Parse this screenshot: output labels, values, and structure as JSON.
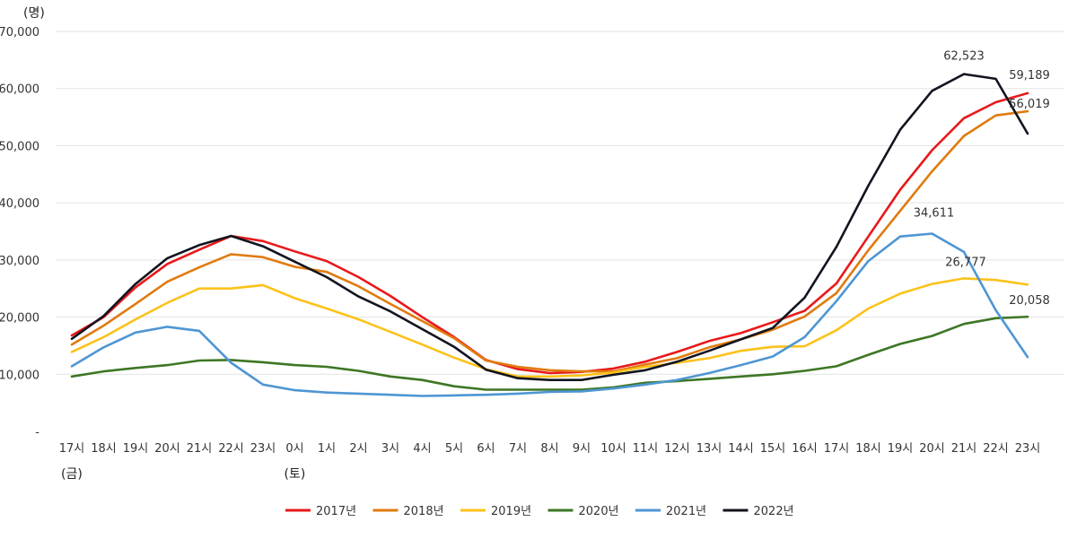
{
  "chart_data": {
    "type": "line",
    "title": "",
    "y_unit_label": "(명)",
    "xlabel": "",
    "ylabel": "",
    "ylim": [
      0,
      70000
    ],
    "y_ticks": [
      {
        "value": 0,
        "label": "-"
      },
      {
        "value": 10000,
        "label": "10,000"
      },
      {
        "value": 20000,
        "label": "20,000"
      },
      {
        "value": 30000,
        "label": "30,000"
      },
      {
        "value": 40000,
        "label": "40,000"
      },
      {
        "value": 50000,
        "label": "50,000"
      },
      {
        "value": 60000,
        "label": "60,000"
      },
      {
        "value": 70000,
        "label": "70,000"
      }
    ],
    "categories": [
      "17시",
      "18시",
      "19시",
      "20시",
      "21시",
      "22시",
      "23시",
      "0시",
      "1시",
      "2시",
      "3시",
      "4시",
      "5시",
      "6시",
      "7시",
      "8시",
      "9시",
      "10시",
      "11시",
      "12시",
      "13시",
      "14시",
      "15시",
      "16시",
      "17시",
      "18시",
      "19시",
      "20시",
      "21시",
      "22시",
      "23시"
    ],
    "day_labels": [
      {
        "index": 0,
        "text": "(금)"
      },
      {
        "index": 7,
        "text": "(토)"
      }
    ],
    "grid": true,
    "legend_position": "bottom-center",
    "series": [
      {
        "name": "2017년",
        "color": "#e8191b",
        "values": [
          16800,
          20000,
          25200,
          29300,
          31800,
          34200,
          33300,
          31500,
          29800,
          27000,
          23700,
          20000,
          16500,
          12500,
          10900,
          10200,
          10400,
          11000,
          12200,
          13900,
          15800,
          17200,
          19100,
          21100,
          25900,
          34100,
          42300,
          49200,
          54800,
          57600,
          59189
        ]
      },
      {
        "name": "2018년",
        "color": "#e07b0e",
        "values": [
          15200,
          18500,
          22300,
          26200,
          28700,
          31000,
          30500,
          28800,
          27900,
          25400,
          22300,
          19300,
          16300,
          12400,
          11300,
          10700,
          10500,
          10500,
          11700,
          12800,
          14700,
          16100,
          17800,
          20100,
          24200,
          31700,
          38600,
          45500,
          51700,
          55300,
          56019
        ]
      },
      {
        "name": "2019년",
        "color": "#fcc21b",
        "values": [
          13900,
          16500,
          19600,
          22500,
          25000,
          25000,
          25600,
          23300,
          21500,
          19600,
          17400,
          15200,
          12900,
          10900,
          9600,
          9600,
          9800,
          10300,
          11300,
          12000,
          12800,
          14100,
          14800,
          14900,
          17700,
          21500,
          24100,
          25800,
          26777,
          26500,
          25700
        ]
      },
      {
        "name": "2020년",
        "color": "#3e7625",
        "values": [
          9600,
          10500,
          11100,
          11600,
          12400,
          12500,
          12100,
          11600,
          11300,
          10600,
          9600,
          9000,
          7900,
          7300,
          7300,
          7300,
          7300,
          7700,
          8500,
          8800,
          9200,
          9600,
          10000,
          10600,
          11400,
          13400,
          15300,
          16700,
          18800,
          19800,
          20058
        ]
      },
      {
        "name": "2021년",
        "color": "#4e96d3",
        "values": [
          11400,
          14700,
          17300,
          18300,
          17600,
          12000,
          8200,
          7200,
          6800,
          6600,
          6400,
          6200,
          6300,
          6400,
          6600,
          6900,
          7000,
          7500,
          8200,
          9000,
          10200,
          11600,
          13100,
          16500,
          22800,
          29800,
          34100,
          34611,
          31400,
          21200,
          13000
        ]
      },
      {
        "name": "2022년",
        "color": "#12141f",
        "values": [
          16200,
          20200,
          25800,
          30300,
          32600,
          34200,
          32400,
          29700,
          27000,
          23600,
          21000,
          17900,
          14800,
          10800,
          9300,
          9000,
          9000,
          9900,
          10700,
          12200,
          14100,
          16100,
          18100,
          23400,
          32300,
          43000,
          52800,
          59600,
          62523,
          61700,
          52100
        ]
      }
    ],
    "annotations": [
      {
        "text": "62,523",
        "series": "2022년",
        "index": 28
      },
      {
        "text": "59,189",
        "series": "2017년",
        "index": 30
      },
      {
        "text": "56,019",
        "series": "2018년",
        "index": 30
      },
      {
        "text": "34,611",
        "series": "2021년",
        "index": 27
      },
      {
        "text": "26,777",
        "series": "2019년",
        "index": 28
      },
      {
        "text": "20,058",
        "series": "2020년",
        "index": 30
      }
    ]
  }
}
